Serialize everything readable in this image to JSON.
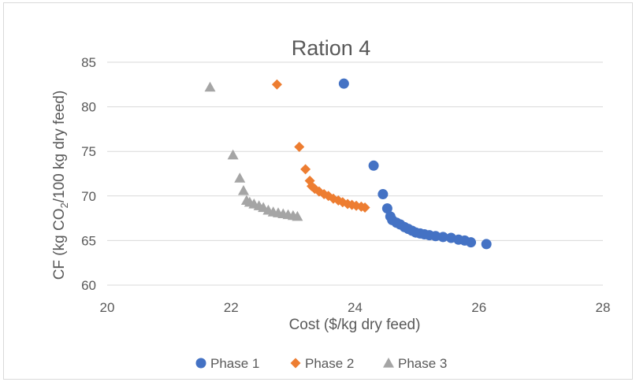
{
  "chart_data": {
    "type": "scatter",
    "title": "Ration 4",
    "xlabel": "Cost ($/kg dry feed)",
    "ylabel_parts": {
      "before": "CF (kg CO",
      "sub": "2",
      "after": "/100 kg dry feed)"
    },
    "xlim": [
      20,
      28
    ],
    "ylim": [
      60,
      85
    ],
    "x_ticks": [
      "20",
      "22",
      "24",
      "26",
      "28"
    ],
    "y_ticks": [
      "60",
      "65",
      "70",
      "75",
      "80",
      "85"
    ],
    "grid": "horizontal",
    "legend_position": "bottom",
    "series": [
      {
        "name": "Phase 1",
        "marker": "circle",
        "color": "#4472c4",
        "points": [
          [
            23.82,
            82.6
          ],
          [
            24.3,
            73.4
          ],
          [
            24.45,
            70.2
          ],
          [
            24.52,
            68.6
          ],
          [
            24.57,
            67.7
          ],
          [
            24.6,
            67.3
          ],
          [
            24.67,
            67.0
          ],
          [
            24.73,
            66.8
          ],
          [
            24.8,
            66.5
          ],
          [
            24.86,
            66.3
          ],
          [
            24.92,
            66.1
          ],
          [
            24.98,
            65.9
          ],
          [
            25.05,
            65.8
          ],
          [
            25.12,
            65.7
          ],
          [
            25.2,
            65.6
          ],
          [
            25.3,
            65.5
          ],
          [
            25.42,
            65.4
          ],
          [
            25.55,
            65.3
          ],
          [
            25.67,
            65.1
          ],
          [
            25.77,
            65.0
          ],
          [
            25.87,
            64.8
          ],
          [
            26.12,
            64.6
          ]
        ]
      },
      {
        "name": "Phase 2",
        "marker": "diamond",
        "color": "#ed7d31",
        "points": [
          [
            22.74,
            82.5
          ],
          [
            23.1,
            75.5
          ],
          [
            23.2,
            73.0
          ],
          [
            23.27,
            71.7
          ],
          [
            23.3,
            71.1
          ],
          [
            23.35,
            70.8
          ],
          [
            23.42,
            70.5
          ],
          [
            23.5,
            70.2
          ],
          [
            23.57,
            70.0
          ],
          [
            23.65,
            69.7
          ],
          [
            23.73,
            69.5
          ],
          [
            23.8,
            69.3
          ],
          [
            23.88,
            69.1
          ],
          [
            23.95,
            69.0
          ],
          [
            24.02,
            68.9
          ],
          [
            24.1,
            68.8
          ],
          [
            24.16,
            68.7
          ]
        ]
      },
      {
        "name": "Phase 3",
        "marker": "triangle",
        "color": "#a5a5a5",
        "points": [
          [
            21.66,
            82.2
          ],
          [
            22.03,
            74.6
          ],
          [
            22.14,
            72.0
          ],
          [
            22.2,
            70.6
          ],
          [
            22.25,
            69.5
          ],
          [
            22.3,
            69.3
          ],
          [
            22.37,
            69.1
          ],
          [
            22.45,
            68.9
          ],
          [
            22.52,
            68.7
          ],
          [
            22.6,
            68.4
          ],
          [
            22.68,
            68.2
          ],
          [
            22.76,
            68.1
          ],
          [
            22.84,
            68.0
          ],
          [
            22.92,
            67.9
          ],
          [
            23.0,
            67.8
          ],
          [
            23.07,
            67.7
          ]
        ]
      }
    ]
  }
}
